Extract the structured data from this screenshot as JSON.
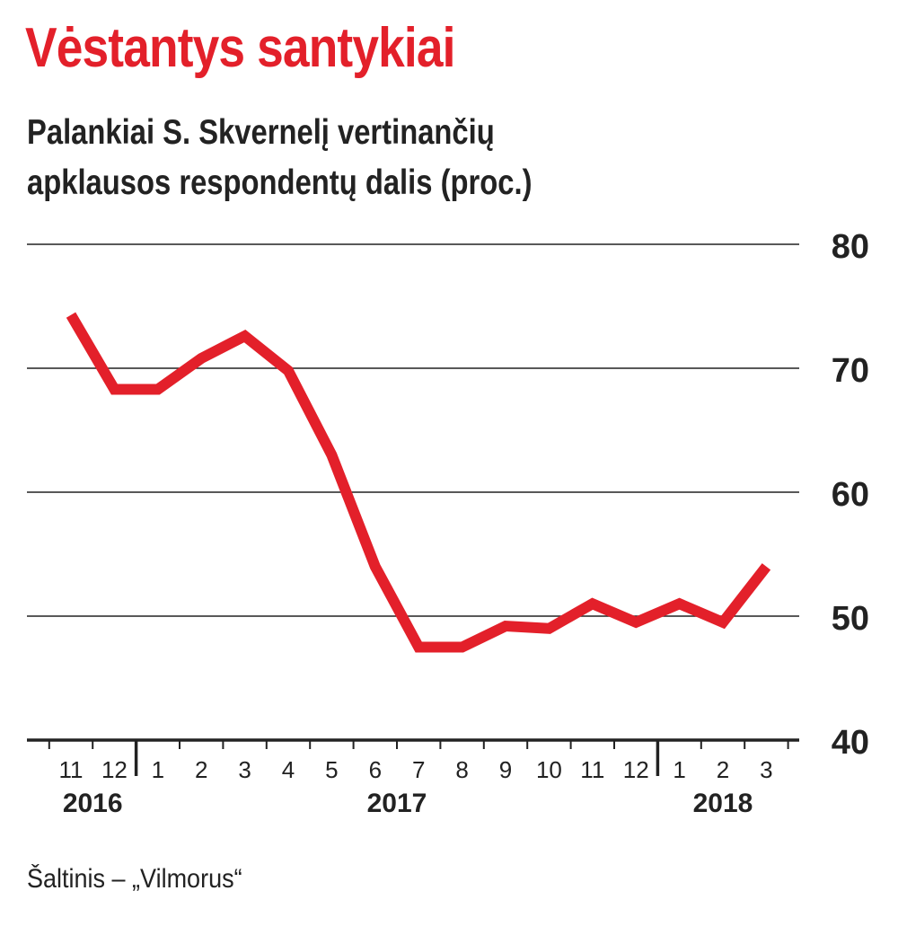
{
  "header": {
    "title": "Vėstantys santykiai",
    "subtitle_line1": "Palankiai S. Skvernelį vertinančių",
    "subtitle_line2": "apklausos respondentų dalis (proc.)"
  },
  "footer": {
    "source": "Šaltinis – „Vilmorus“"
  },
  "colors": {
    "accent": "#e3202a",
    "text": "#222222",
    "grid": "#222222"
  },
  "chart_data": {
    "type": "line",
    "title": "Vėstantys santykiai",
    "subtitle": "Palankiai S. Skvernelį vertinančių apklausos respondentų dalis (proc.)",
    "xlabel": "",
    "ylabel": "",
    "ylim": [
      40,
      80
    ],
    "yticks": [
      "40",
      "50",
      "60",
      "70",
      "80"
    ],
    "grid": true,
    "categories": [
      "11",
      "12",
      "1",
      "2",
      "3",
      "4",
      "5",
      "6",
      "7",
      "8",
      "9",
      "10",
      "11",
      "12",
      "1",
      "2",
      "3"
    ],
    "years": [
      {
        "label": "2016",
        "from": 0,
        "to": 1
      },
      {
        "label": "2017",
        "from": 2,
        "to": 13
      },
      {
        "label": "2018",
        "from": 14,
        "to": 16
      }
    ],
    "series": [
      {
        "values": [
          74.3,
          68.3,
          68.3,
          70.8,
          72.6,
          69.8,
          63.0,
          54.0,
          47.5,
          47.5,
          49.2,
          49.0,
          51.0,
          49.5,
          51.0,
          49.5,
          54.0
        ]
      }
    ]
  }
}
